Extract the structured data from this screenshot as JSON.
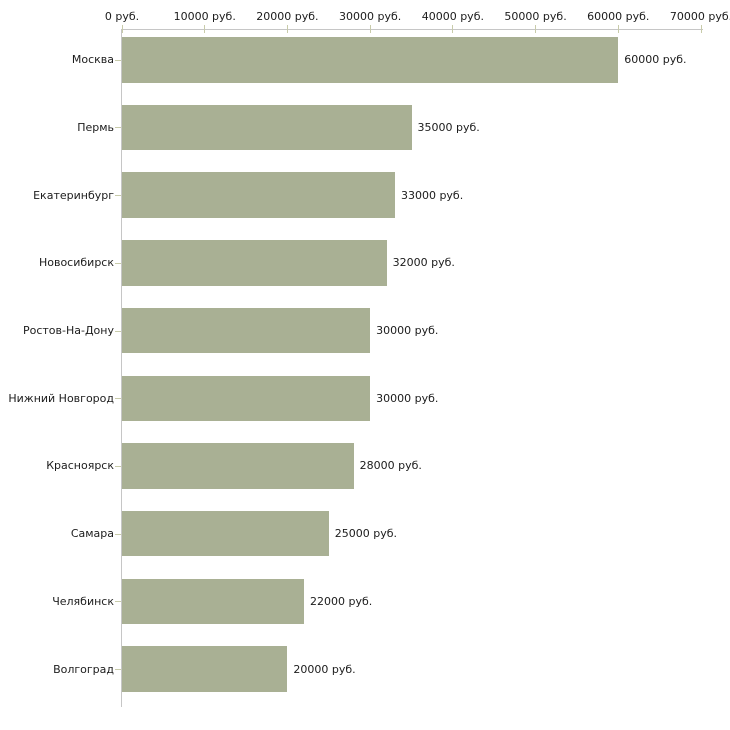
{
  "chart_data": {
    "type": "bar",
    "orientation": "horizontal",
    "title": "",
    "categories": [
      "Москва",
      "Пермь",
      "Екатеринбург",
      "Новосибирск",
      "Ростов-На-Дону",
      "Нижний Новгород",
      "Красноярск",
      "Самара",
      "Челябинск",
      "Волгоград"
    ],
    "values": [
      60000,
      35000,
      33000,
      32000,
      30000,
      30000,
      28000,
      25000,
      22000,
      20000
    ],
    "value_labels": [
      "60000 руб.",
      "35000 руб.",
      "33000 руб.",
      "32000 руб.",
      "30000 руб.",
      "30000 руб.",
      "28000 руб.",
      "25000 руб.",
      "22000 руб.",
      "20000 руб."
    ],
    "x_axis": {
      "position": "top",
      "min": 0,
      "max": 70000,
      "step": 10000,
      "tick_labels": [
        "0 руб.",
        "10000 руб.",
        "20000 руб.",
        "30000 руб.",
        "40000 руб.",
        "50000 руб.",
        "60000 руб.",
        "70000 руб."
      ]
    },
    "grid": false,
    "legend": false,
    "colors": {
      "bar": "#a9b094",
      "axis_line": "#c6c6c6",
      "tick_mark": "#c8cbaa",
      "text": "#1c1c1c",
      "background": "#ffffff"
    }
  }
}
